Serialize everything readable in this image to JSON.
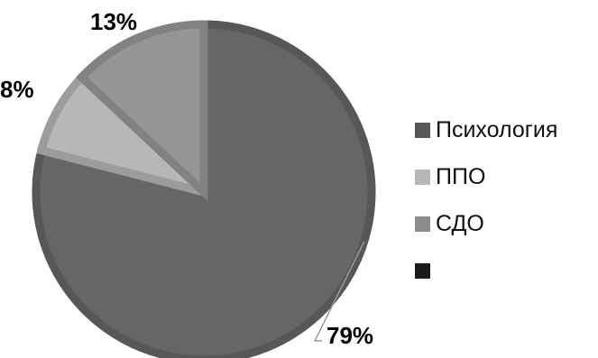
{
  "chart_data": {
    "type": "pie",
    "slices": [
      {
        "label": "Психология",
        "value": 79,
        "display": "79%",
        "color": "#666666",
        "edge": "#575757"
      },
      {
        "label": "ППО",
        "value": 8,
        "display": "8%",
        "color": "#b7b7b7",
        "edge": "#9c9c9c"
      },
      {
        "label": "СДО",
        "value": 13,
        "display": "13%",
        "color": "#959595",
        "edge": "#828282"
      }
    ],
    "legend": {
      "placement": "right",
      "entries": [
        {
          "label": "Психология",
          "color": "#575757"
        },
        {
          "label": "ППО",
          "color": "#b7b7b7"
        },
        {
          "label": "СДО",
          "color": "#8c8c8c"
        },
        {
          "label": "",
          "color": "#1a1a1a"
        }
      ]
    }
  }
}
